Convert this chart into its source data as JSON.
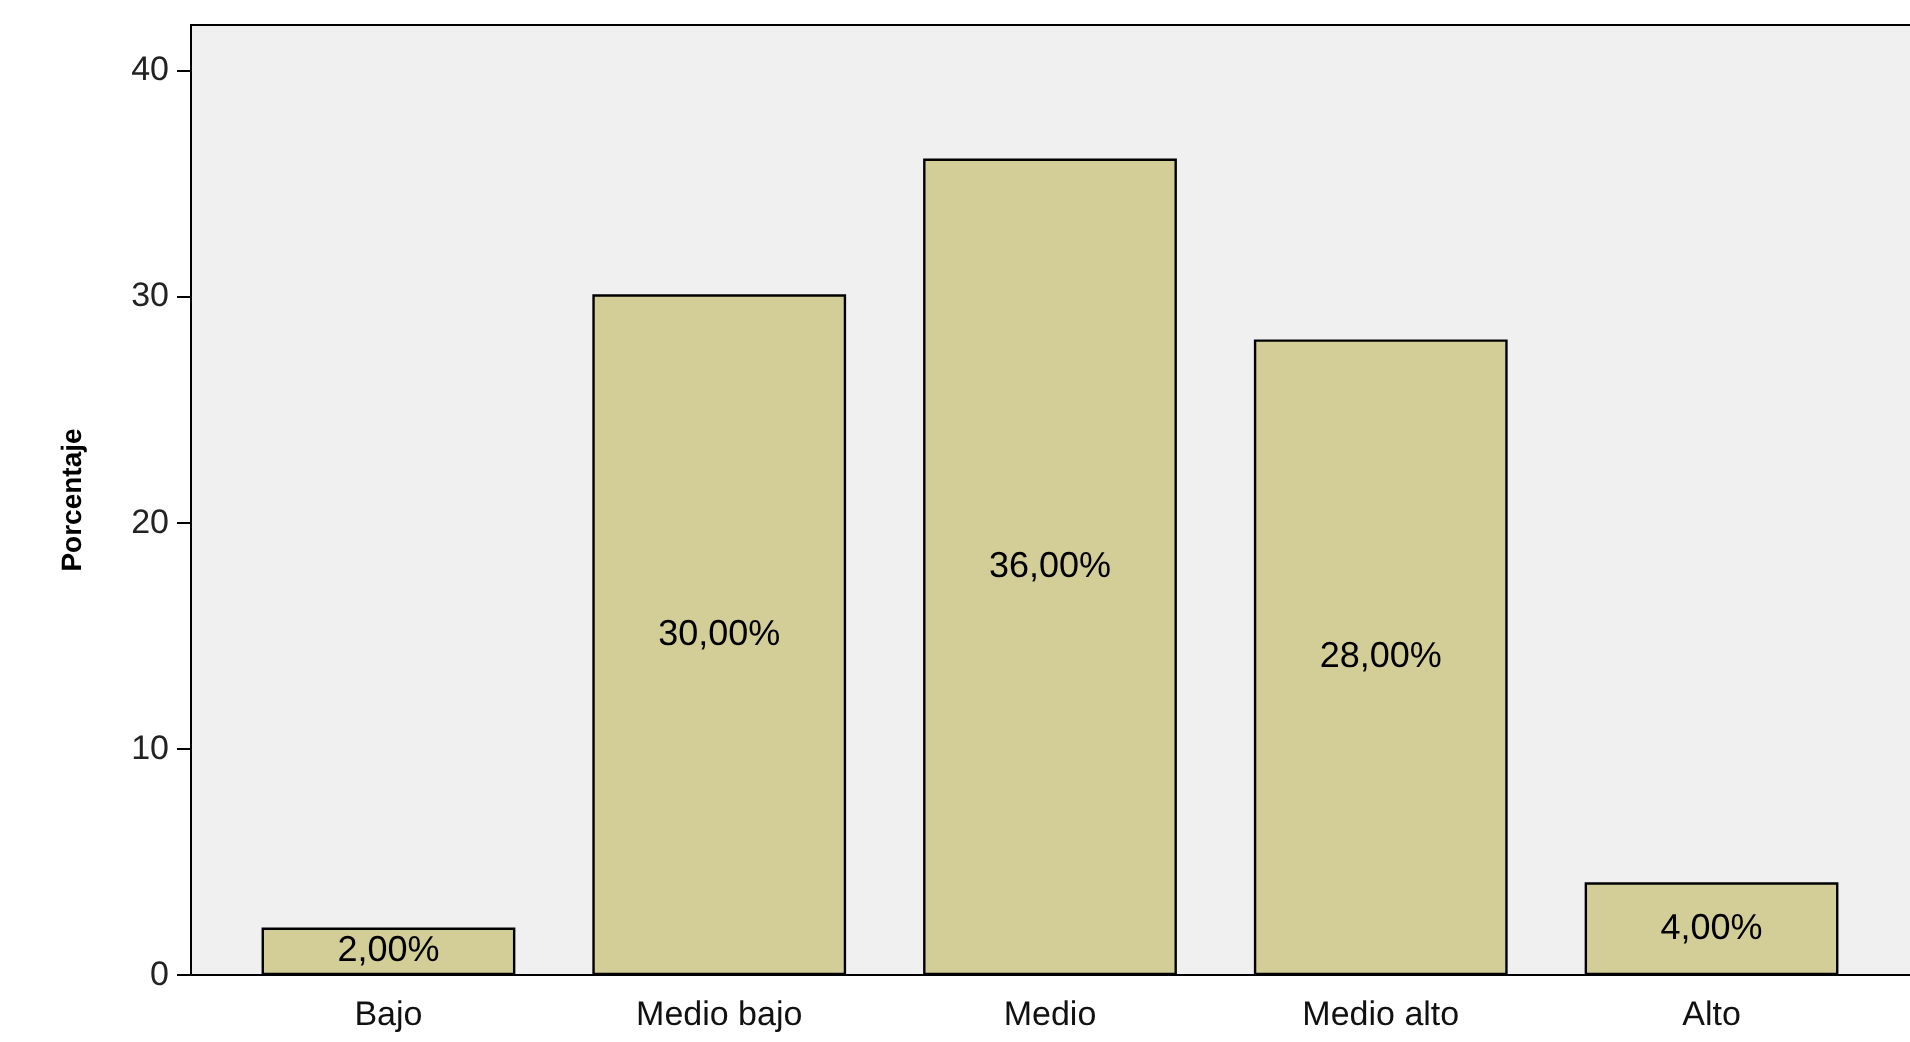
{
  "chart_data": {
    "type": "bar",
    "ylabel": "Porcentaje",
    "categories": [
      "Bajo",
      "Medio bajo",
      "Medio",
      "Medio alto",
      "Alto"
    ],
    "values": [
      2,
      30,
      36,
      28,
      4
    ],
    "value_labels": [
      "2,00%",
      "30,00%",
      "36,00%",
      "28,00%",
      "4,00%"
    ],
    "color": "#d3ce97",
    "ylim": [
      0,
      42
    ],
    "yticks": [
      0,
      10,
      20,
      30,
      40
    ],
    "grid": false
  }
}
